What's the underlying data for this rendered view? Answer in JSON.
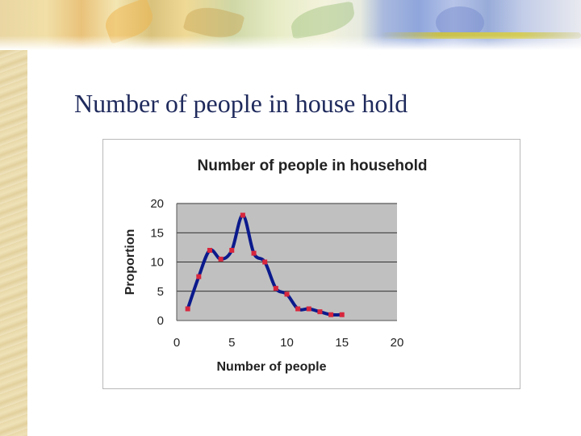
{
  "slide": {
    "title": "Number of people in house hold"
  },
  "chart_data": {
    "type": "line",
    "title": "Number of people in household",
    "xlabel": "Number of people",
    "ylabel": "Proportion",
    "xlim": [
      0,
      20
    ],
    "ylim": [
      0,
      20
    ],
    "x_ticks": [
      0,
      5,
      10,
      15,
      20
    ],
    "y_ticks": [
      0,
      5,
      10,
      15,
      20
    ],
    "grid": true,
    "legend": "none",
    "plot_background": "#c0c0c0",
    "line_color": "#0b1a8c",
    "marker_color": "#d7263d",
    "series": [
      {
        "x": [
          1,
          2,
          3,
          4,
          5,
          6,
          7,
          8,
          9,
          10,
          11,
          12,
          13,
          14,
          15
        ],
        "values": [
          2,
          7.5,
          12,
          10.5,
          12,
          18,
          11.5,
          10,
          5.5,
          4.5,
          2,
          2,
          1.5,
          1,
          1
        ]
      }
    ]
  }
}
